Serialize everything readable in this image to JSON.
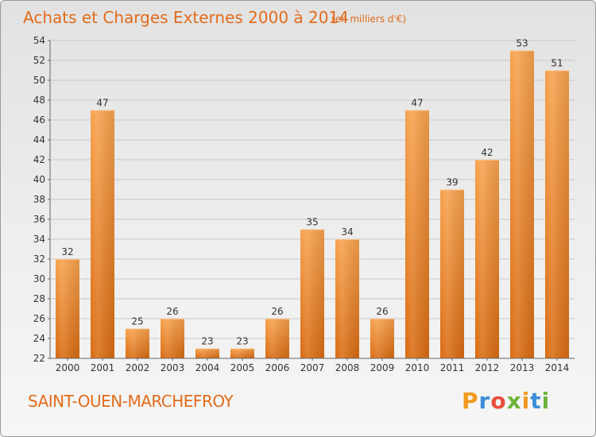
{
  "chart_data": {
    "type": "bar",
    "title": "Achats et Charges Externes 2000 à 2014",
    "subtitle": "(en milliers d'€)",
    "categories": [
      "2000",
      "2001",
      "2002",
      "2003",
      "2004",
      "2005",
      "2006",
      "2007",
      "2008",
      "2009",
      "2010",
      "2011",
      "2012",
      "2013",
      "2014"
    ],
    "values": [
      32,
      47,
      25,
      26,
      23,
      23,
      26,
      35,
      34,
      26,
      47,
      39,
      42,
      53,
      51
    ],
    "ylim": [
      22,
      54
    ],
    "yticks": [
      22,
      24,
      26,
      28,
      30,
      32,
      34,
      36,
      38,
      40,
      42,
      44,
      46,
      48,
      50,
      52,
      54
    ],
    "grid": true,
    "xlabel": "",
    "ylabel": "",
    "bar_color_top": "#f7a24e",
    "bar_color_bottom": "#d96c13"
  },
  "footer": {
    "commune": "SAINT-OUEN-MARCHEFROY",
    "logo_letters": [
      "P",
      "r",
      "o",
      "x",
      "i",
      "t",
      "i"
    ],
    "logo_colors": [
      "#f39a1e",
      "#3b8ed8",
      "#e84c3d",
      "#6bb33a",
      "#f39a1e",
      "#3b8ed8",
      "#6bb33a"
    ]
  }
}
